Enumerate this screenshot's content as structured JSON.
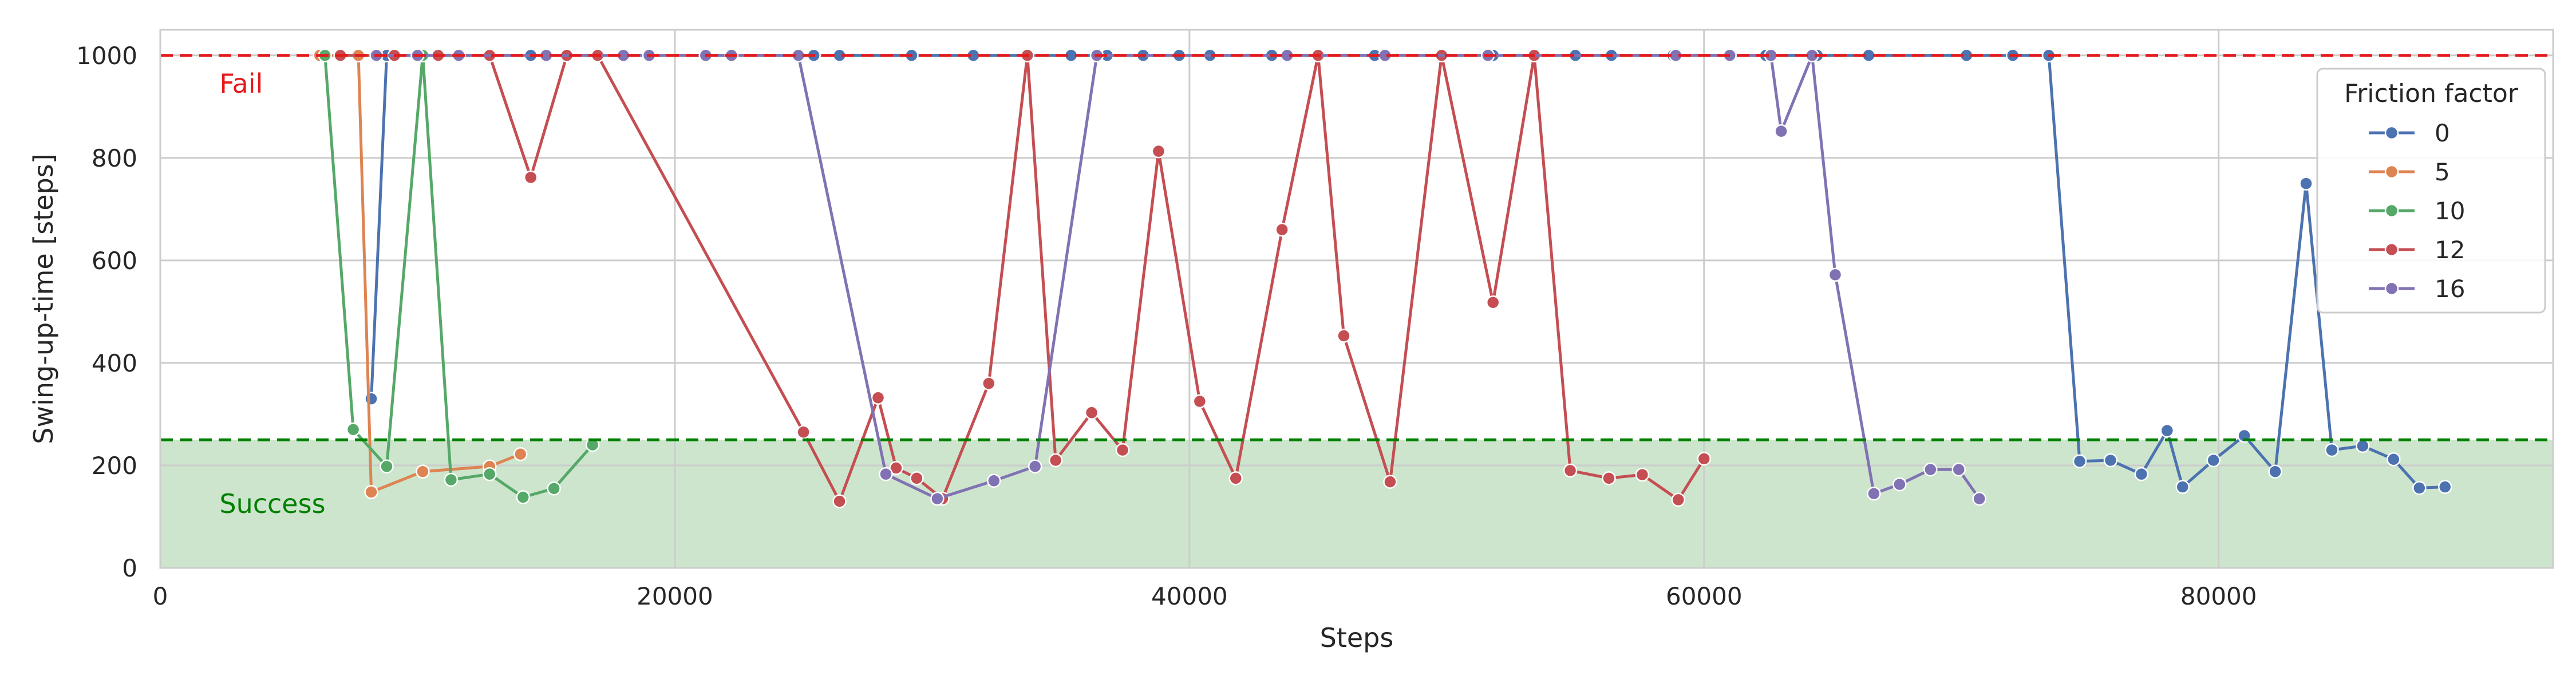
{
  "chart_data": {
    "type": "line",
    "title": "",
    "xlabel": "Steps",
    "ylabel": "Swing-up-time [steps]",
    "xlim": [
      0,
      93000
    ],
    "ylim": [
      0,
      1050
    ],
    "x_ticks": [
      0,
      20000,
      40000,
      60000,
      80000
    ],
    "x_tick_labels": [
      "0",
      "20000",
      "40000",
      "60000",
      "80000"
    ],
    "y_ticks": [
      0,
      200,
      400,
      600,
      800,
      1000
    ],
    "y_tick_labels": [
      "0",
      "200",
      "400",
      "600",
      "800",
      "1000"
    ],
    "grid": true,
    "legend": {
      "title": "Friction factor",
      "placement": "upper-right"
    },
    "thresholds": [
      {
        "label": "Fail",
        "y": 1000,
        "color": "#e41a1c",
        "style": "dashed"
      },
      {
        "label": "Success",
        "y": 250,
        "color": "#008000",
        "style": "dashed",
        "fill": "#cde5cd"
      }
    ],
    "series": [
      {
        "name": "0",
        "color": "#4c72b0",
        "x": [
          8200,
          8800,
          14400,
          25400,
          26400,
          29200,
          31600,
          35400,
          36800,
          38200,
          39600,
          40800,
          43200,
          47200,
          49800,
          51800,
          53400,
          55000,
          56400,
          58800,
          62400,
          64400,
          66400,
          70200,
          72000,
          73400,
          74600,
          75800,
          77000,
          78000,
          78600,
          79800,
          81000,
          82200,
          83400,
          84400,
          85600,
          86800,
          87800,
          88800
        ],
        "y": [
          330,
          1000,
          1000,
          1000,
          1000,
          1000,
          1000,
          1000,
          1000,
          1000,
          1000,
          1000,
          1000,
          1000,
          1000,
          1000,
          1000,
          1000,
          1000,
          1000,
          1000,
          1000,
          1000,
          1000,
          1000,
          1000,
          208,
          210,
          183,
          268,
          158,
          210,
          258,
          188,
          750,
          230,
          238,
          212,
          156,
          158
        ]
      },
      {
        "name": "5",
        "color": "#dd8452",
        "x": [
          6200,
          7700,
          8200,
          10200,
          12800,
          14000
        ],
        "y": [
          1000,
          1000,
          148,
          188,
          198,
          222
        ]
      },
      {
        "name": "10",
        "color": "#55a868",
        "x": [
          6400,
          7500,
          8800,
          10200,
          11300,
          12800,
          14100,
          15300,
          16800
        ],
        "y": [
          1000,
          270,
          198,
          1000,
          172,
          183,
          138,
          155,
          240
        ]
      },
      {
        "name": "12",
        "color": "#c44e52",
        "x": [
          7000,
          9100,
          10800,
          12800,
          14400,
          15800,
          17000,
          25000,
          26400,
          27900,
          28600,
          29400,
          30400,
          32200,
          33700,
          34800,
          36200,
          37400,
          38800,
          40400,
          41800,
          43600,
          45000,
          46000,
          47800,
          49800,
          51800,
          53400,
          54800,
          56300,
          57600,
          59000,
          60000
        ],
        "y": [
          1000,
          1000,
          1000,
          1000,
          762,
          1000,
          1000,
          265,
          130,
          332,
          195,
          175,
          135,
          360,
          1000,
          210,
          303,
          230,
          813,
          325,
          175,
          660,
          1000,
          453,
          168,
          1000,
          518,
          1000,
          190,
          175,
          182,
          133,
          213
        ]
      },
      {
        "name": "16",
        "color": "#8172b3",
        "x": [
          8400,
          10000,
          11600,
          15000,
          18000,
          19000,
          21200,
          22200,
          24800,
          28200,
          30200,
          32400,
          34000,
          36400,
          43800,
          47600,
          51600,
          58900,
          61000,
          62600,
          63000,
          64200,
          65100,
          66600,
          67600,
          68800,
          69900,
          70700
        ],
        "y": [
          1000,
          1000,
          1000,
          1000,
          1000,
          1000,
          1000,
          1000,
          1000,
          183,
          135,
          170,
          198,
          1000,
          1000,
          1000,
          1000,
          1000,
          1000,
          1000,
          852,
          1000,
          572,
          145,
          163,
          192,
          192,
          135
        ]
      }
    ],
    "annotations": [
      {
        "text": "Fail",
        "x": 2300,
        "y": 945,
        "color": "#e41a1c"
      },
      {
        "text": "Success",
        "x": 2300,
        "y": 125,
        "color": "#008000"
      }
    ]
  }
}
